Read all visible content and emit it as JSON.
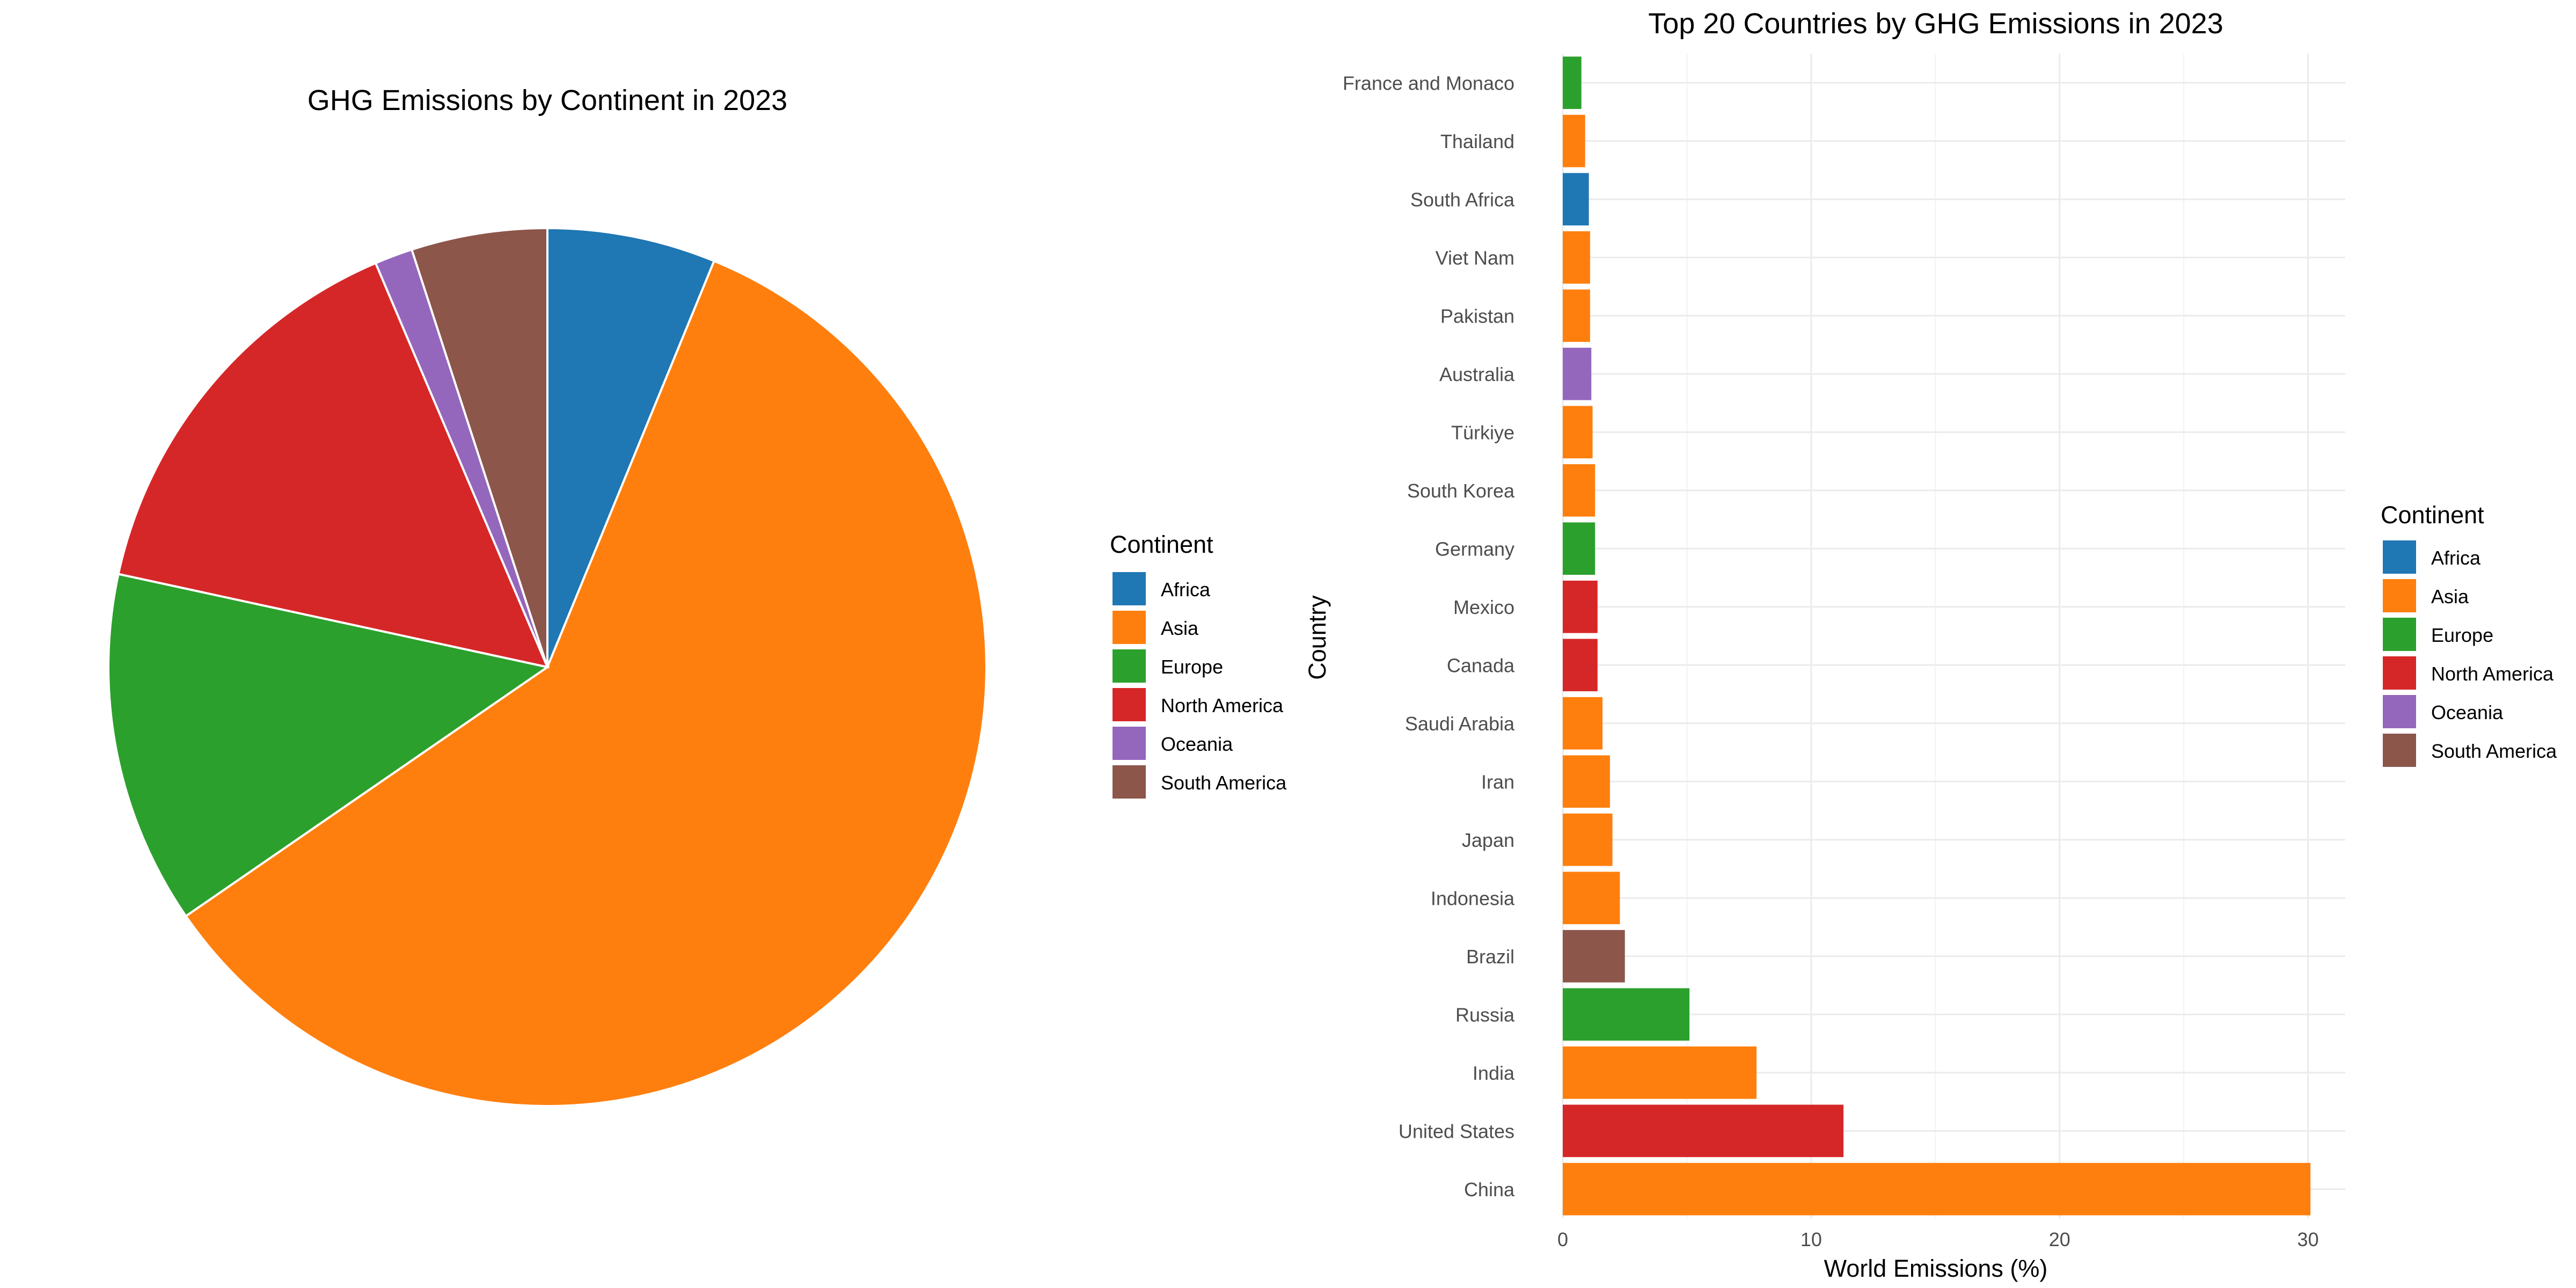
{
  "colors": {
    "Africa": "#1f77b4",
    "Asia": "#ff7f0e",
    "Europe": "#2ca02c",
    "North America": "#d62728",
    "Oceania": "#9467bd",
    "South America": "#8c564b"
  },
  "chart_data": [
    {
      "type": "pie",
      "title": "GHG Emissions by Continent in 2023",
      "legend_title": "Continent",
      "legend_position": "right",
      "start": "top",
      "direction": "clockwise",
      "categories": [
        "Africa",
        "Asia",
        "Europe",
        "North America",
        "Oceania",
        "South America"
      ],
      "values": [
        6.2,
        59.2,
        13.0,
        15.2,
        1.4,
        5.0
      ]
    },
    {
      "type": "bar",
      "orientation": "horizontal",
      "title": "Top 20 Countries by GHG Emissions in 2023",
      "xlabel": "World Emissions (%)",
      "ylabel": "Country",
      "xlim": [
        0,
        31.5
      ],
      "xticks": [
        0,
        10,
        20,
        30
      ],
      "grid": true,
      "legend_title": "Continent",
      "legend_position": "right",
      "legend_items": [
        "Africa",
        "Asia",
        "Europe",
        "North America",
        "Oceania",
        "South America"
      ],
      "categories": [
        "China",
        "United States",
        "India",
        "Russia",
        "Brazil",
        "Indonesia",
        "Japan",
        "Iran",
        "Saudi Arabia",
        "Canada",
        "Mexico",
        "Germany",
        "South Korea",
        "Türkiye",
        "Australia",
        "Pakistan",
        "Viet Nam",
        "South Africa",
        "Thailand",
        "France and Monaco"
      ],
      "values": [
        30.1,
        11.3,
        7.8,
        5.1,
        2.5,
        2.3,
        2.0,
        1.9,
        1.6,
        1.4,
        1.4,
        1.3,
        1.3,
        1.2,
        1.15,
        1.1,
        1.1,
        1.05,
        0.9,
        0.75
      ],
      "continents": [
        "Asia",
        "North America",
        "Asia",
        "Europe",
        "South America",
        "Asia",
        "Asia",
        "Asia",
        "Asia",
        "North America",
        "North America",
        "Europe",
        "Asia",
        "Asia",
        "Oceania",
        "Asia",
        "Asia",
        "Africa",
        "Asia",
        "Europe"
      ]
    }
  ]
}
